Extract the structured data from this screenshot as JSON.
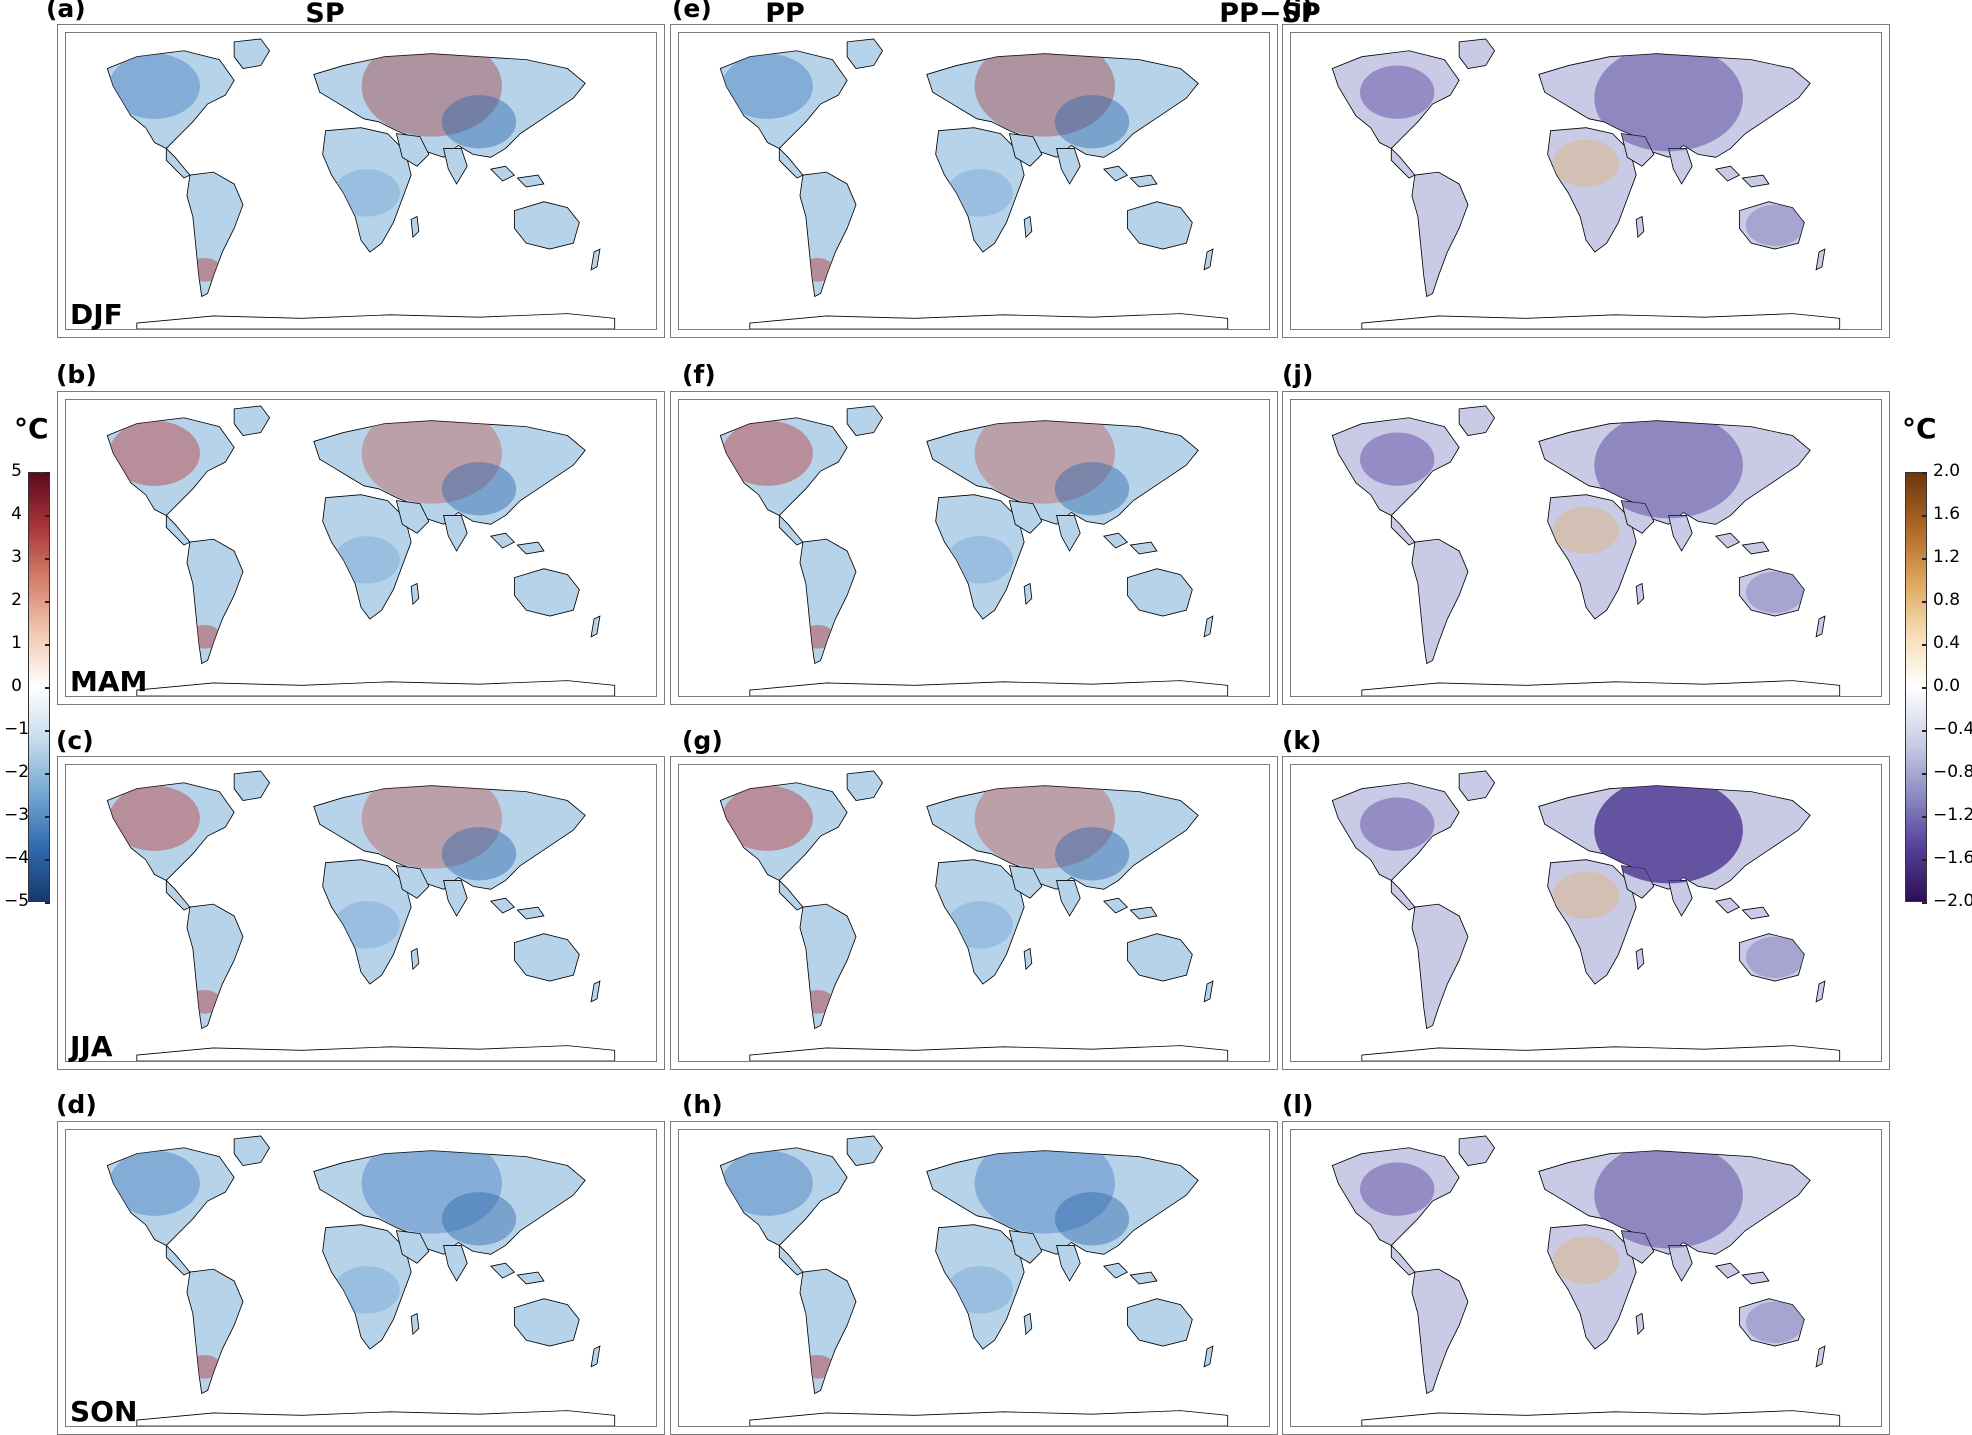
{
  "column_titles": [
    "SP",
    "PP",
    "PP−SP"
  ],
  "panel_labels": [
    "(a)",
    "(b)",
    "(c)",
    "(d)",
    "(e)",
    "(f)",
    "(g)",
    "(h)",
    "(i)",
    "(j)",
    "(k)",
    "(l)"
  ],
  "seasons": [
    "DJF",
    "MAM",
    "JJA",
    "SON"
  ],
  "colorbar_left": {
    "unit": "°C",
    "ticks": [
      "5",
      "4",
      "3",
      "2",
      "1",
      "0",
      "−1",
      "−2",
      "−3",
      "−4",
      "−5"
    ],
    "colors": [
      "#15386d",
      "#2f6bae",
      "#74a6d3",
      "#c4dcee",
      "#ffffff",
      "#f2c9b2",
      "#d4806b",
      "#a9343a",
      "#5c0a1e"
    ]
  },
  "colorbar_right": {
    "unit": "°C",
    "ticks": [
      "2.0",
      "1.6",
      "1.2",
      "0.8",
      "0.4",
      "0.0",
      "−0.4",
      "−0.8",
      "−1.2",
      "−1.6",
      "−2.0"
    ],
    "colors": [
      "#2d0e52",
      "#55409a",
      "#8d8cc2",
      "#ccd0e6",
      "#ffffff",
      "#f6dcb4",
      "#dca55b",
      "#ad6524",
      "#6b3810"
    ]
  },
  "map_colors": {
    "land_left": "#b7d3ea",
    "land_right": "#c9cbe6",
    "land_outline": "#000000"
  }
}
